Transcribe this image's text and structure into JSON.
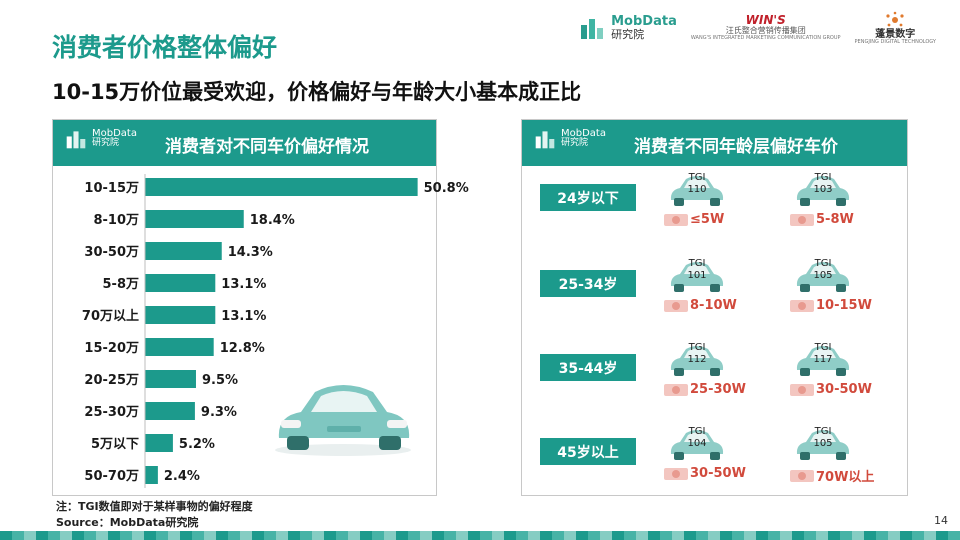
{
  "header": {
    "title": "消费者价格整体偏好",
    "subtitle": "10-15万价位最受欢迎，价格偏好与年龄大小基本成正比"
  },
  "logos": {
    "mobdata_name": "MobData",
    "mobdata_sub": "研究院",
    "wins_mark": "WIN'S",
    "wins_cn": "汪氏整合营销传播集团",
    "wins_en": "WANG'S INTEGRATED MARKETING COMMUNICATION GROUP",
    "pj_cn": "蓬景数字",
    "pj_en": "PENGJING DIGITAL TECHNOLOGY"
  },
  "left_panel": {
    "logo_name": "MobData",
    "logo_sub": "研究院",
    "title": "消费者对不同车价偏好情况"
  },
  "right_panel": {
    "logo_name": "MobData",
    "logo_sub": "研究院",
    "title": "消费者不同年龄层偏好车价",
    "groups": [
      {
        "age": "24岁以下",
        "options": [
          {
            "tgi": "TGI\n110",
            "price": "≤5W"
          },
          {
            "tgi": "TGI\n103",
            "price": "5-8W"
          }
        ]
      },
      {
        "age": "25-34岁",
        "options": [
          {
            "tgi": "TGI\n101",
            "price": "8-10W"
          },
          {
            "tgi": "TGI\n105",
            "price": "10-15W"
          }
        ]
      },
      {
        "age": "35-44岁",
        "options": [
          {
            "tgi": "TGI\n112",
            "price": "25-30W"
          },
          {
            "tgi": "TGI\n117",
            "price": "30-50W"
          }
        ]
      },
      {
        "age": "45岁以上",
        "options": [
          {
            "tgi": "TGI\n104",
            "price": "30-50W"
          },
          {
            "tgi": "TGI\n105",
            "price": "70W以上"
          }
        ]
      }
    ]
  },
  "chart_data": {
    "type": "bar",
    "orientation": "horizontal",
    "title": "消费者对不同车价偏好情况",
    "categories": [
      "10-15万",
      "8-10万",
      "30-50万",
      "5-8万",
      "70万以上",
      "15-20万",
      "20-25万",
      "25-30万",
      "5万以下",
      "50-70万"
    ],
    "values": [
      50.8,
      18.4,
      14.3,
      13.1,
      13.1,
      12.8,
      9.5,
      9.3,
      5.2,
      2.4
    ],
    "value_labels": [
      "50.8%",
      "18.4%",
      "14.3%",
      "13.1%",
      "13.1%",
      "12.8%",
      "9.5%",
      "9.3%",
      "5.2%",
      "2.4%"
    ],
    "xlim": [
      0,
      60
    ],
    "grid": false,
    "bar_color": "#1c9a8c"
  },
  "footer": {
    "note": "注：TGI数值即对于某样事物的偏好程度",
    "source": "Source：MobData研究院",
    "page_number": "14"
  }
}
